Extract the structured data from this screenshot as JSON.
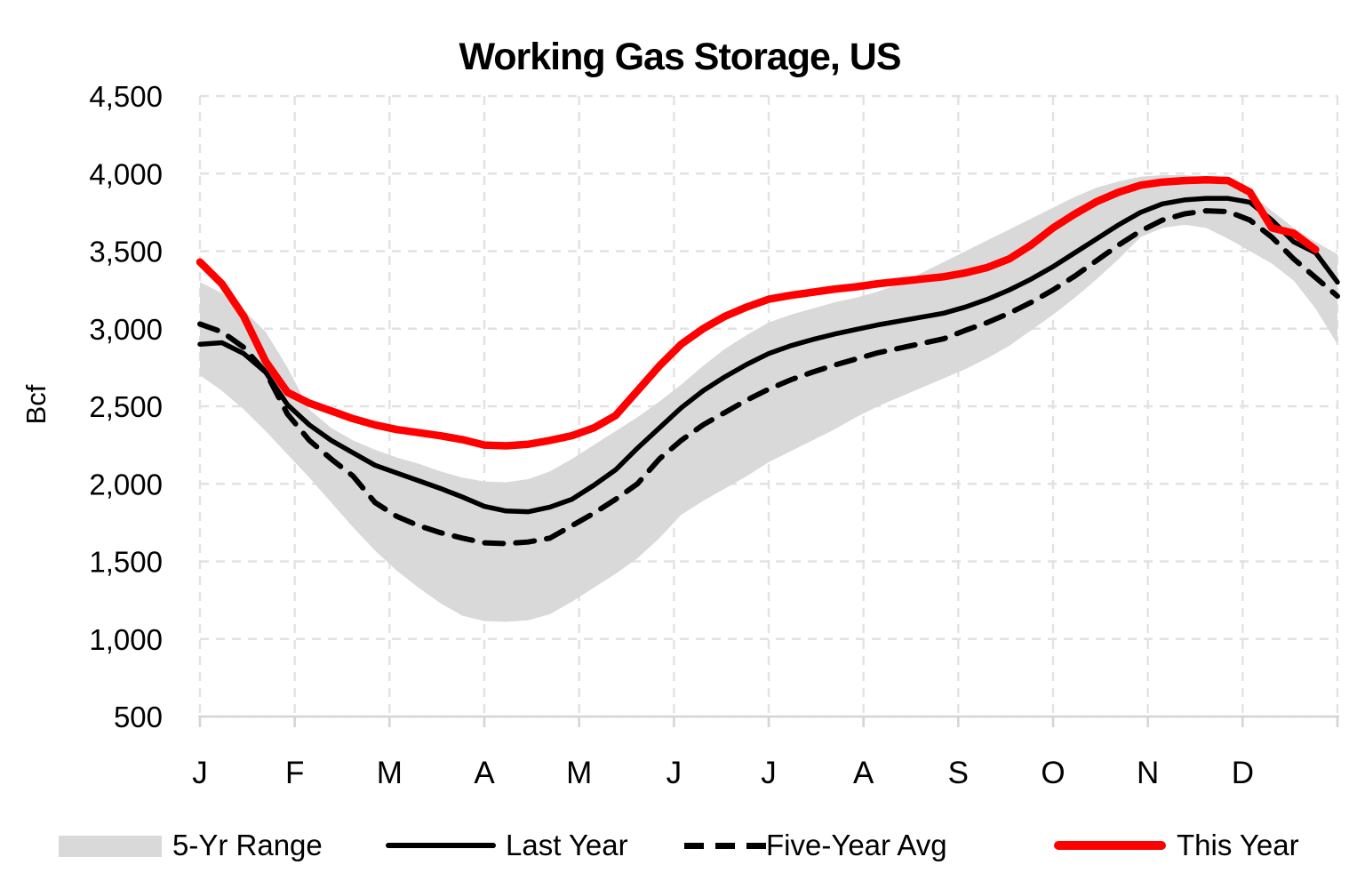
{
  "title": "Working Gas Storage, US",
  "y_axis_title": "Bcf",
  "legend": {
    "items": [
      {
        "label": "5-Yr Range",
        "swatch": "gray-band-swatch",
        "color": "#D9D9D9"
      },
      {
        "label": "Last Year",
        "swatch": "solid-black-line-swatch",
        "color": "#000000"
      },
      {
        "label": "Five-Year Avg",
        "swatch": "dashed-black-line-swatch",
        "color": "#000000"
      },
      {
        "label": "This Year",
        "swatch": "solid-red-line-swatch",
        "color": "#FF0000"
      }
    ]
  },
  "colors": {
    "band": "#D9D9D9",
    "gridline": "#E2E2E2",
    "axis": "#D5D5D5",
    "black_line": "#000000",
    "red_line": "#FF0000",
    "text": "#000000"
  },
  "chart_data": {
    "type": "line",
    "title": "Working Gas Storage, US",
    "xlabel": "",
    "ylabel": "Bcf",
    "grid": "dashed, both axes",
    "legend_position": "bottom",
    "ylim": [
      500,
      4500
    ],
    "y_axis": {
      "min": 500,
      "max": 4500,
      "step": 500,
      "tick_labels": [
        "500",
        "1,000",
        "1,500",
        "2,000",
        "2,500",
        "3,000",
        "3,500",
        "4,000",
        "4,500"
      ]
    },
    "x_axis": {
      "unit": "weekly points, Jan through Dec",
      "tick_labels": [
        "J",
        "F",
        "M",
        "A",
        "M",
        "J",
        "J",
        "A",
        "S",
        "O",
        "N",
        "D"
      ],
      "points_per_year": 53
    },
    "series": [
      {
        "name": "5-Yr Range",
        "type": "band",
        "color": "#D9D9D9",
        "max": [
          3300,
          3230,
          3120,
          2980,
          2750,
          2480,
          2360,
          2280,
          2220,
          2170,
          2130,
          2080,
          2040,
          2015,
          2010,
          2030,
          2080,
          2160,
          2250,
          2340,
          2430,
          2530,
          2640,
          2760,
          2870,
          2960,
          3040,
          3090,
          3130,
          3170,
          3200,
          3240,
          3290,
          3360,
          3430,
          3500,
          3570,
          3640,
          3710,
          3780,
          3850,
          3910,
          3950,
          3980,
          3990,
          3990,
          3975,
          3950,
          3870,
          3760,
          3650,
          3560,
          3480
        ],
        "min": [
          2700,
          2600,
          2480,
          2340,
          2190,
          2040,
          1880,
          1720,
          1570,
          1440,
          1330,
          1230,
          1150,
          1115,
          1110,
          1120,
          1160,
          1240,
          1330,
          1420,
          1520,
          1650,
          1800,
          1890,
          1970,
          2050,
          2140,
          2210,
          2280,
          2350,
          2430,
          2500,
          2560,
          2620,
          2680,
          2740,
          2810,
          2890,
          2990,
          3090,
          3200,
          3320,
          3450,
          3590,
          3650,
          3670,
          3650,
          3580,
          3500,
          3420,
          3310,
          3130,
          2900
        ]
      },
      {
        "name": "Last Year",
        "type": "line",
        "style": "solid",
        "color": "#000000",
        "width": 5.5,
        "values": [
          2900,
          2910,
          2840,
          2720,
          2510,
          2380,
          2280,
          2200,
          2120,
          2070,
          2020,
          1970,
          1915,
          1855,
          1825,
          1820,
          1850,
          1900,
          1990,
          2090,
          2230,
          2360,
          2490,
          2600,
          2690,
          2770,
          2840,
          2890,
          2930,
          2965,
          2995,
          3025,
          3050,
          3075,
          3100,
          3140,
          3190,
          3250,
          3320,
          3400,
          3490,
          3580,
          3670,
          3750,
          3805,
          3830,
          3840,
          3840,
          3815,
          3700,
          3560,
          3490,
          3300
        ]
      },
      {
        "name": "Five-Year Avg",
        "type": "line",
        "style": "dashed",
        "color": "#000000",
        "width": 6,
        "values": [
          3030,
          2980,
          2880,
          2720,
          2450,
          2280,
          2160,
          2050,
          1880,
          1790,
          1730,
          1685,
          1650,
          1620,
          1615,
          1625,
          1650,
          1730,
          1810,
          1900,
          2000,
          2160,
          2280,
          2380,
          2460,
          2540,
          2610,
          2670,
          2720,
          2765,
          2805,
          2845,
          2875,
          2905,
          2935,
          2990,
          3040,
          3100,
          3170,
          3250,
          3340,
          3440,
          3540,
          3630,
          3700,
          3740,
          3760,
          3755,
          3700,
          3590,
          3450,
          3330,
          3210
        ]
      },
      {
        "name": "This Year",
        "type": "line",
        "style": "solid",
        "color": "#FF0000",
        "width": 8.5,
        "values": [
          3430,
          3290,
          3080,
          2790,
          2590,
          2520,
          2470,
          2420,
          2380,
          2350,
          2330,
          2310,
          2285,
          2250,
          2245,
          2255,
          2280,
          2310,
          2360,
          2440,
          2600,
          2760,
          2900,
          3000,
          3080,
          3140,
          3190,
          3215,
          3235,
          3255,
          3270,
          3290,
          3305,
          3320,
          3335,
          3360,
          3395,
          3450,
          3540,
          3650,
          3740,
          3820,
          3880,
          3925,
          3945,
          3955,
          3960,
          3955,
          3880,
          3650,
          3615,
          3510
        ]
      }
    ]
  }
}
